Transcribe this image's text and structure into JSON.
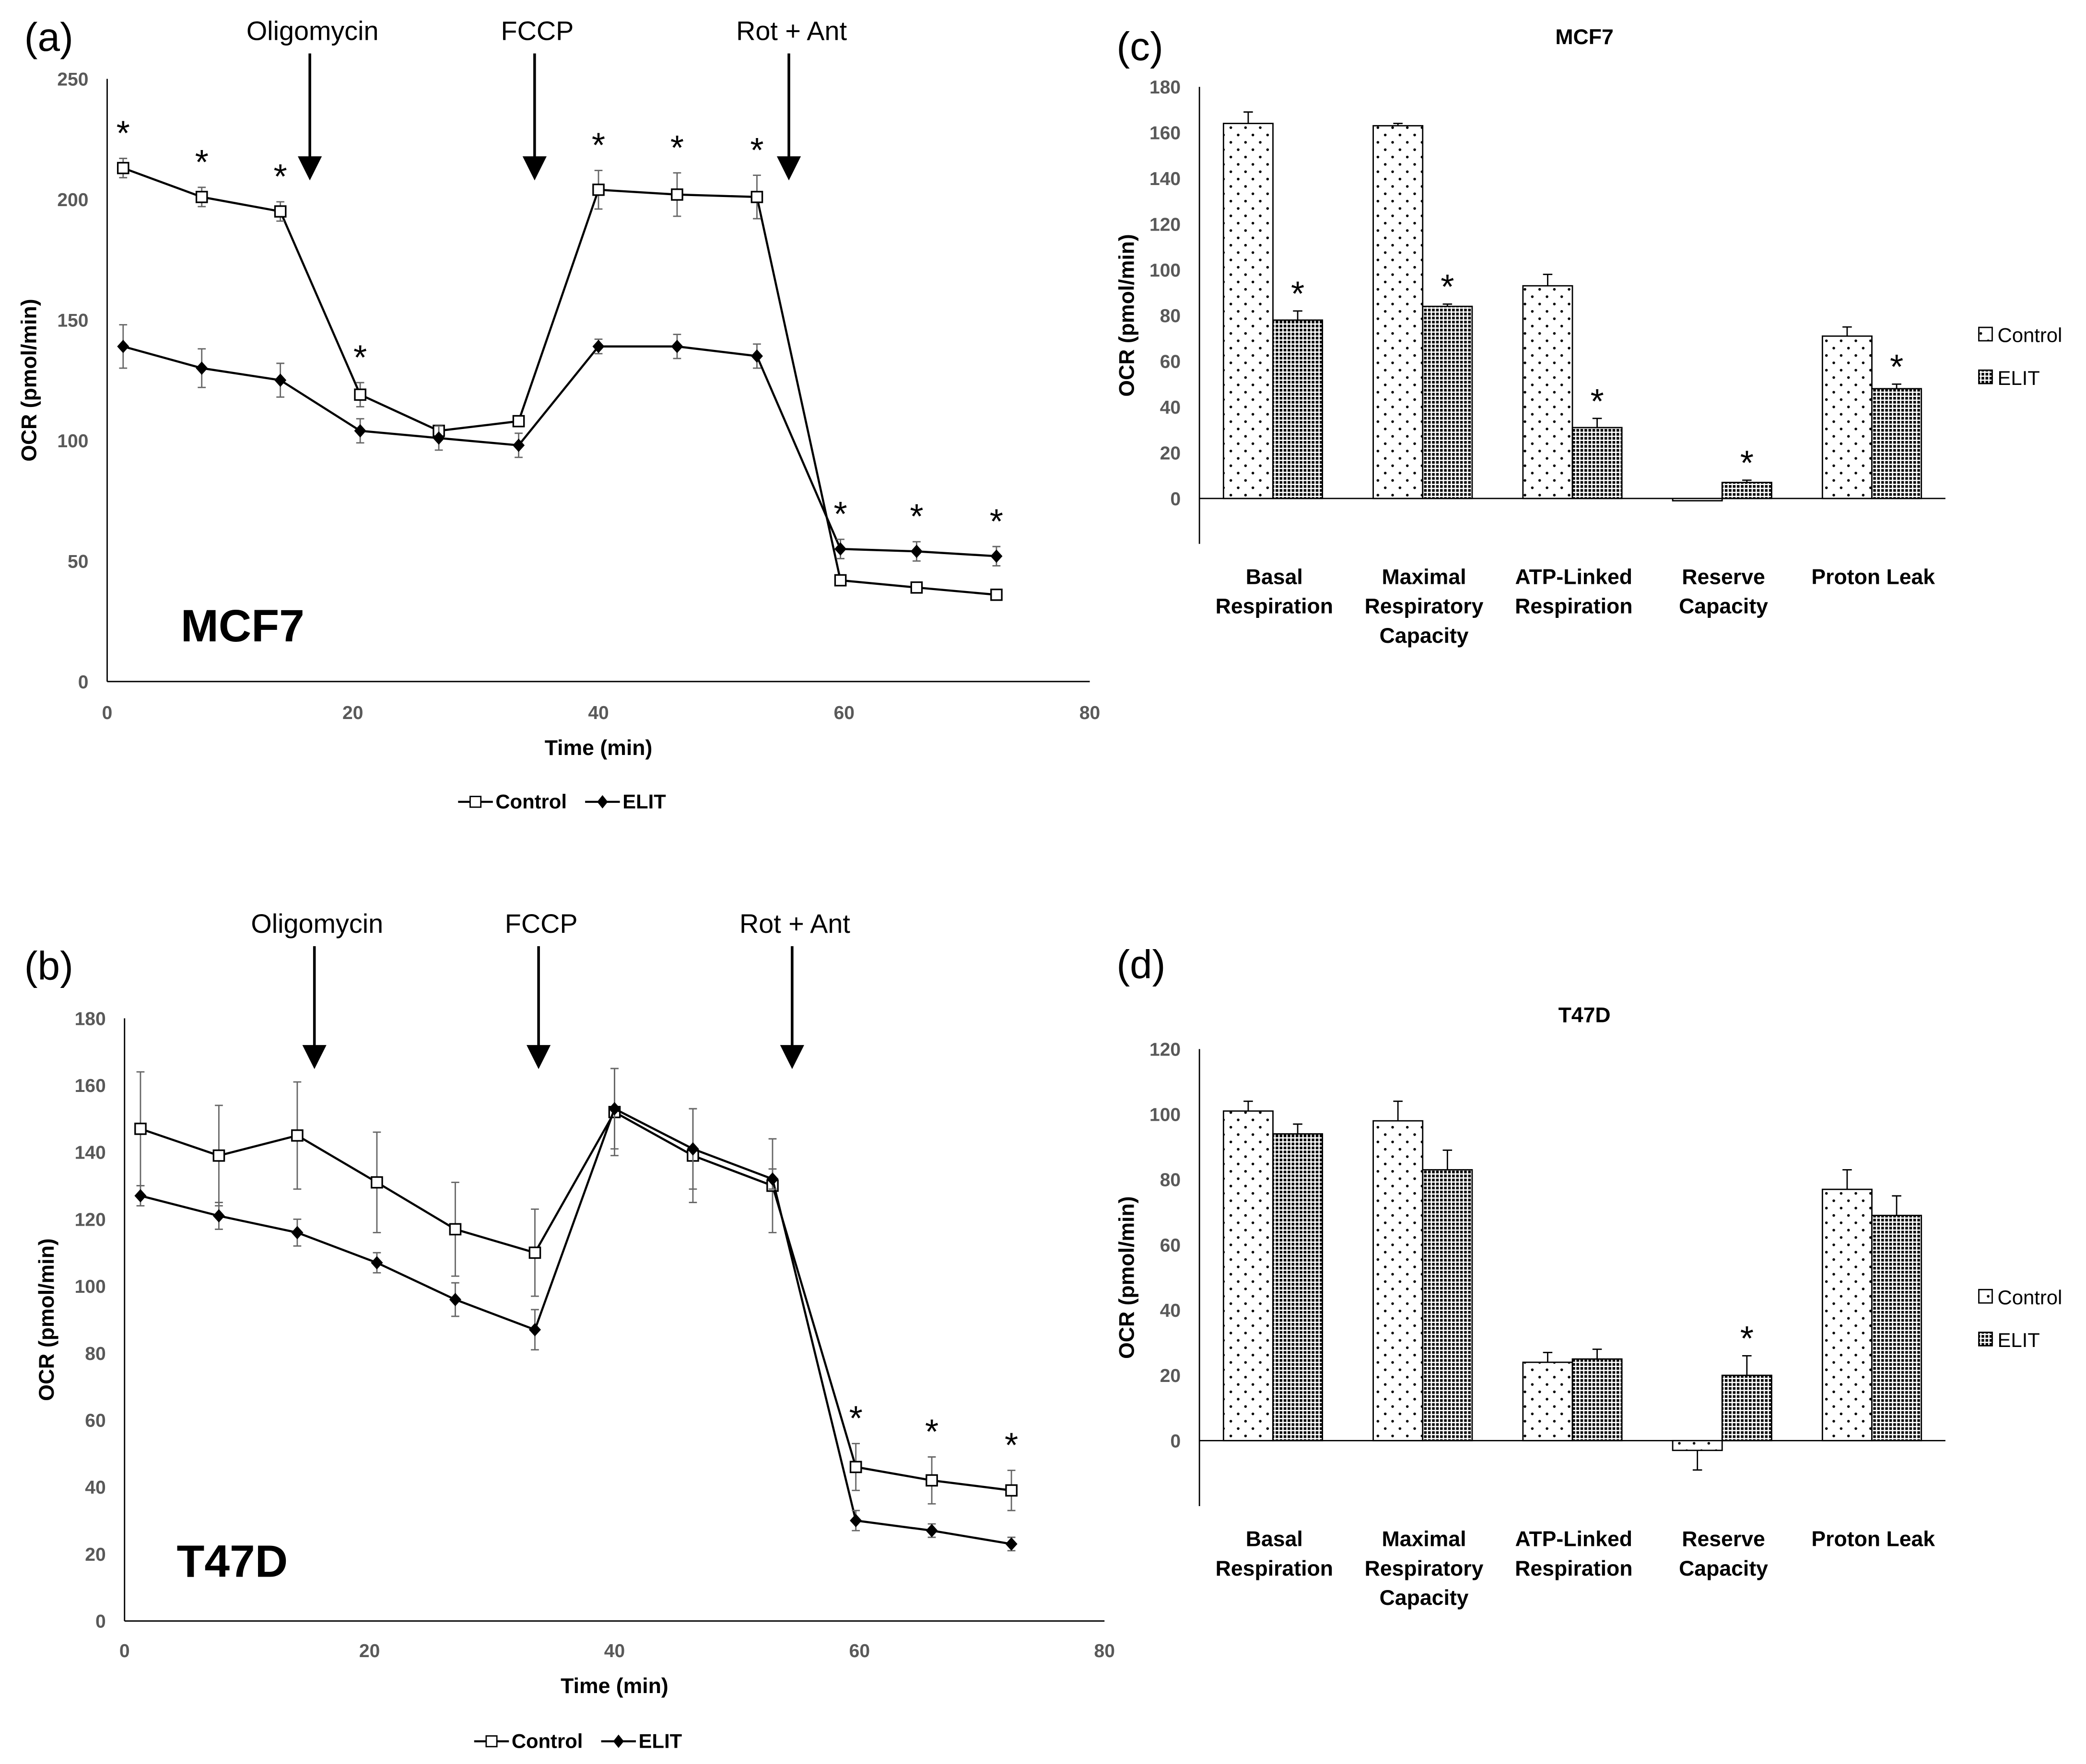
{
  "chart_data": [
    {
      "panel": "(a)",
      "type": "line",
      "cell_line": "MCF7",
      "xlabel": "Time (min)",
      "ylabel": "OCR (pmol/min)",
      "xlim": [
        0,
        80
      ],
      "ylim": [
        0,
        250
      ],
      "xticks": [
        0,
        20,
        40,
        60,
        80
      ],
      "yticks": [
        0,
        50,
        100,
        150,
        200,
        250
      ],
      "injections": [
        {
          "label": "Oligomycin",
          "x": 16.5
        },
        {
          "label": "FCCP",
          "x": 34.8
        },
        {
          "label": "Rot + Ant",
          "x": 55.5
        }
      ],
      "x": [
        1.3,
        7.7,
        14.1,
        20.6,
        27.0,
        33.5,
        40.0,
        46.4,
        52.9,
        59.7,
        65.9,
        72.4
      ],
      "series": [
        {
          "name": "Control",
          "marker": "open-square",
          "values": [
            213,
            201,
            195,
            119,
            104,
            108,
            204,
            202,
            201,
            42,
            39,
            36
          ],
          "errors": [
            4,
            4,
            4,
            5,
            2,
            2,
            8,
            9,
            9,
            2,
            2,
            2
          ]
        },
        {
          "name": "ELIT",
          "marker": "filled-diamond",
          "values": [
            139,
            130,
            125,
            104,
            101,
            98,
            139,
            139,
            135,
            55,
            54,
            52
          ],
          "errors": [
            9,
            8,
            7,
            5,
            5,
            5,
            3,
            5,
            5,
            4,
            4,
            4
          ]
        }
      ],
      "significance": "*",
      "significant_points": [
        0,
        1,
        2,
        3,
        6,
        7,
        8,
        9,
        10,
        11
      ],
      "legend": "bottom"
    },
    {
      "panel": "(b)",
      "type": "line",
      "cell_line": "T47D",
      "xlabel": "Time (min)",
      "ylabel": "OCR (pmol/min)",
      "xlim": [
        0,
        80
      ],
      "ylim": [
        0,
        180
      ],
      "xticks": [
        0,
        20,
        40,
        60,
        80
      ],
      "yticks": [
        0,
        20,
        40,
        60,
        80,
        100,
        120,
        140,
        160,
        180
      ],
      "injections": [
        {
          "label": "Oligomycin",
          "x": 15.5
        },
        {
          "label": "FCCP",
          "x": 33.8
        },
        {
          "label": "Rot + Ant",
          "x": 54.5
        }
      ],
      "x": [
        1.3,
        7.7,
        14.1,
        20.6,
        27.0,
        33.5,
        40.0,
        46.4,
        52.9,
        59.7,
        65.9,
        72.4
      ],
      "series": [
        {
          "name": "Control",
          "marker": "open-square",
          "values": [
            147,
            139,
            145,
            131,
            117,
            110,
            152,
            139,
            130,
            46,
            42,
            39
          ],
          "errors": [
            17,
            15,
            16,
            15,
            14,
            13,
            13,
            14,
            14,
            7,
            7,
            6
          ]
        },
        {
          "name": "ELIT",
          "marker": "filled-diamond",
          "values": [
            127,
            121,
            116,
            107,
            96,
            87,
            153,
            141,
            132,
            30,
            27,
            23
          ],
          "errors": [
            3,
            4,
            4,
            3,
            5,
            6,
            12,
            12,
            3,
            3,
            2,
            2
          ]
        }
      ],
      "significance": "*",
      "significant_points": [
        9,
        10,
        11
      ],
      "legend": "bottom"
    },
    {
      "panel": "(c)",
      "type": "bar",
      "title": "MCF7",
      "ylabel": "OCR (pmol/min)",
      "ylim": [
        -20,
        180
      ],
      "yticks": [
        0,
        20,
        40,
        60,
        80,
        100,
        120,
        140,
        160,
        180
      ],
      "categories": [
        [
          "Basal",
          "Respiration"
        ],
        [
          "Maximal",
          "Respiratory",
          "Capacity"
        ],
        [
          "ATP-Linked",
          "Respiration"
        ],
        [
          "Reserve",
          "Capacity"
        ],
        [
          "Proton Leak"
        ]
      ],
      "series": [
        {
          "name": "Control",
          "pattern": "sparse-dots",
          "values": [
            164,
            163,
            93,
            -1,
            71
          ],
          "errors": [
            5,
            1,
            5,
            0,
            4
          ]
        },
        {
          "name": "ELIT",
          "pattern": "dense-checker",
          "values": [
            78,
            84,
            31,
            7,
            48
          ],
          "errors": [
            4,
            1,
            4,
            1,
            2
          ]
        }
      ],
      "significance": "*",
      "significant": [
        [
          false,
          true
        ],
        [
          false,
          true
        ],
        [
          false,
          true
        ],
        [
          false,
          true
        ],
        [
          false,
          true
        ]
      ],
      "legend": "right"
    },
    {
      "panel": "(d)",
      "type": "bar",
      "title": "T47D",
      "ylabel": "OCR (pmol/min)",
      "ylim": [
        -20,
        120
      ],
      "yticks": [
        0,
        20,
        40,
        60,
        80,
        100,
        120
      ],
      "categories": [
        [
          "Basal",
          "Respiration"
        ],
        [
          "Maximal",
          "Respiratory",
          "Capacity"
        ],
        [
          "ATP-Linked",
          "Respiration"
        ],
        [
          "Reserve",
          "Capacity"
        ],
        [
          "Proton Leak"
        ]
      ],
      "series": [
        {
          "name": "Control",
          "pattern": "sparse-dots",
          "values": [
            101,
            98,
            24,
            -3,
            77
          ],
          "errors": [
            3,
            6,
            3,
            6,
            6
          ]
        },
        {
          "name": "ELIT",
          "pattern": "dense-checker",
          "values": [
            94,
            83,
            25,
            20,
            69
          ],
          "errors": [
            3,
            6,
            3,
            6,
            6
          ]
        }
      ],
      "significance": "*",
      "significant": [
        [
          false,
          false
        ],
        [
          false,
          false
        ],
        [
          false,
          false
        ],
        [
          false,
          true
        ],
        [
          false,
          false
        ]
      ],
      "legend": "right"
    }
  ]
}
